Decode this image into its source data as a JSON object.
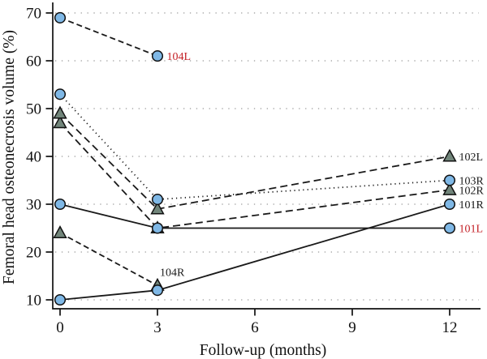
{
  "chart_data": {
    "type": "line",
    "title": "",
    "xlabel": "Follow-up (months)",
    "ylabel": "Femoral head osteonecrosis volume (%)",
    "x_ticks": [
      0,
      3,
      6,
      9,
      12
    ],
    "y_ticks": [
      10,
      20,
      30,
      40,
      50,
      60,
      70
    ],
    "xlim": [
      -0.3,
      13.2
    ],
    "ylim": [
      8,
      72.5
    ],
    "grid": "horizontal dotted lines at every y tick",
    "legend_position": "inline labels at line ends",
    "colors": {
      "circle_fill": "#7fb8e6",
      "triangle_fill": "#71857a",
      "marker_stroke": "#111111",
      "line": "#1a1a1a",
      "grid": "#999999",
      "label_red": "#c42127",
      "label_black": "#1a1a1a"
    },
    "series": [
      {
        "name": "102R",
        "marker": "triangle",
        "line_style": "dashed",
        "x": [
          0,
          3,
          12
        ],
        "y": [
          47,
          25,
          33
        ],
        "label": "102R",
        "label_color": "#1a1a1a",
        "label_pos": "right"
      },
      {
        "name": "102L",
        "marker": "triangle",
        "line_style": "dashed",
        "x": [
          0,
          3,
          12
        ],
        "y": [
          49,
          29,
          40
        ],
        "label": "102L",
        "label_color": "#1a1a1a",
        "label_pos": "right"
      },
      {
        "name": "104R",
        "marker": "triangle",
        "line_style": "dashed-short",
        "x": [
          0,
          3
        ],
        "y": [
          24,
          13
        ],
        "label": "104R",
        "label_color": "#1a1a1a",
        "label_pos": "above"
      },
      {
        "name": "103R",
        "marker": "circle",
        "line_style": "dotted",
        "x": [
          0,
          3,
          12
        ],
        "y": [
          53,
          31,
          35
        ],
        "label": "103R",
        "label_color": "#1a1a1a",
        "label_pos": "right"
      },
      {
        "name": "104L",
        "marker": "circle",
        "line_style": "dashed-short",
        "x": [
          0,
          3
        ],
        "y": [
          69,
          61
        ],
        "label": "104L",
        "label_color": "#c42127",
        "label_pos": "right"
      },
      {
        "name": "101R",
        "marker": "circle",
        "line_style": "solid",
        "x": [
          0,
          3,
          12
        ],
        "y": [
          10,
          12,
          30
        ],
        "label": "101R",
        "label_color": "#1a1a1a",
        "label_pos": "right"
      },
      {
        "name": "101L",
        "marker": "circle",
        "line_style": "solid",
        "x": [
          0,
          3,
          12
        ],
        "y": [
          30,
          25,
          25
        ],
        "label": "101L",
        "label_color": "#c42127",
        "label_pos": "right"
      }
    ]
  }
}
